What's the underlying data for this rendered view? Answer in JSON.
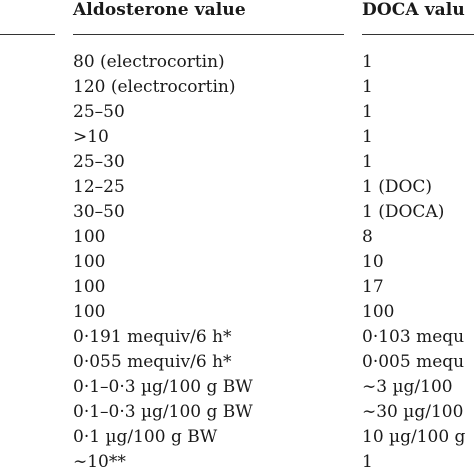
{
  "table": {
    "headers": {
      "aldosterone": "Aldosterone value",
      "doca": "DOCA valu"
    },
    "rows": [
      {
        "aldosterone": "80 (electrocortin)",
        "doca": "1"
      },
      {
        "aldosterone": "120 (electrocortin)",
        "doca": "1"
      },
      {
        "aldosterone": "25–50",
        "doca": "1"
      },
      {
        "aldosterone": ">10",
        "doca": "1"
      },
      {
        "aldosterone": "25–30",
        "doca": "1"
      },
      {
        "aldosterone": "12–25",
        "doca": "1 (DOC)"
      },
      {
        "aldosterone": "30–50",
        "doca": "1 (DOCA)"
      },
      {
        "aldosterone": "100",
        "doca": "8"
      },
      {
        "aldosterone": "100",
        "doca": "10"
      },
      {
        "aldosterone": "100",
        "doca": "17"
      },
      {
        "aldosterone": "100",
        "doca": "100"
      },
      {
        "aldosterone": "0·191 mequiv/6 h*",
        "doca": "0·103 mequ"
      },
      {
        "aldosterone": "0·055 mequiv/6 h*",
        "doca": "0·005 mequ"
      },
      {
        "aldosterone": "0·1–0·3 µg/100 g BW",
        "doca": "∼3 µg/100"
      },
      {
        "aldosterone": "0·1–0·3 µg/100 g BW",
        "doca": "∼30 µg/100"
      },
      {
        "aldosterone": "0·1 µg/100 g BW",
        "doca": "10 µg/100 g"
      },
      {
        "aldosterone": "∼10**",
        "doca": "1"
      }
    ]
  }
}
